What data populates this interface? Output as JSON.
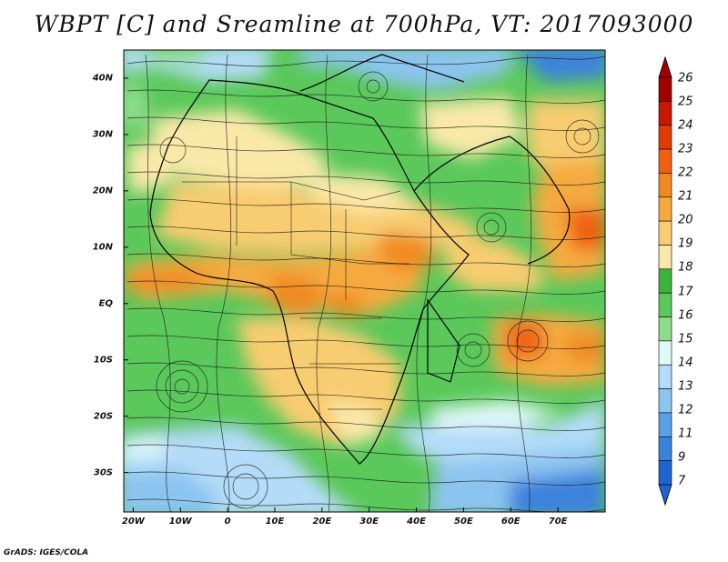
{
  "title": "WBPT [C] and Sreamline at 700hPa, VT: 2017093000",
  "footer": "GrADS: IGES/COLA",
  "map": {
    "lon_range": [
      -22,
      80
    ],
    "lat_range": [
      -37,
      45
    ],
    "y_ticks": [
      {
        "label": "40N",
        "lat": 40
      },
      {
        "label": "30N",
        "lat": 30
      },
      {
        "label": "20N",
        "lat": 20
      },
      {
        "label": "10N",
        "lat": 10
      },
      {
        "label": "EQ",
        "lat": 0
      },
      {
        "label": "10S",
        "lat": -10
      },
      {
        "label": "20S",
        "lat": -20
      },
      {
        "label": "30S",
        "lat": -30
      }
    ],
    "x_ticks": [
      {
        "label": "20W",
        "lon": -20
      },
      {
        "label": "10W",
        "lon": -10
      },
      {
        "label": "0",
        "lon": 0
      },
      {
        "label": "10E",
        "lon": 10
      },
      {
        "label": "20E",
        "lon": 20
      },
      {
        "label": "30E",
        "lon": 30
      },
      {
        "label": "40E",
        "lon": 40
      },
      {
        "label": "50E",
        "lon": 50
      },
      {
        "label": "60E",
        "lon": 60
      },
      {
        "label": "70E",
        "lon": 70
      }
    ]
  },
  "colorbar": {
    "labels": [
      "26",
      "25",
      "24",
      "23",
      "22",
      "21",
      "20",
      "19",
      "18",
      "17",
      "16",
      "15",
      "14",
      "13",
      "12",
      "11",
      "9",
      "7"
    ],
    "colors": [
      "#a00000",
      "#c81800",
      "#e03c00",
      "#f06010",
      "#f08a20",
      "#f5aa40",
      "#f8cc70",
      "#fae8a8",
      "#3cb43c",
      "#5ac85a",
      "#8cdc8c",
      "#e0f8f8",
      "#b4dcf8",
      "#8cc4f0",
      "#5aa0e6",
      "#3c82dc",
      "#1e64d2"
    ],
    "cap_top_color": "#a00000",
    "cap_bottom_color": "#1e64d2"
  }
}
